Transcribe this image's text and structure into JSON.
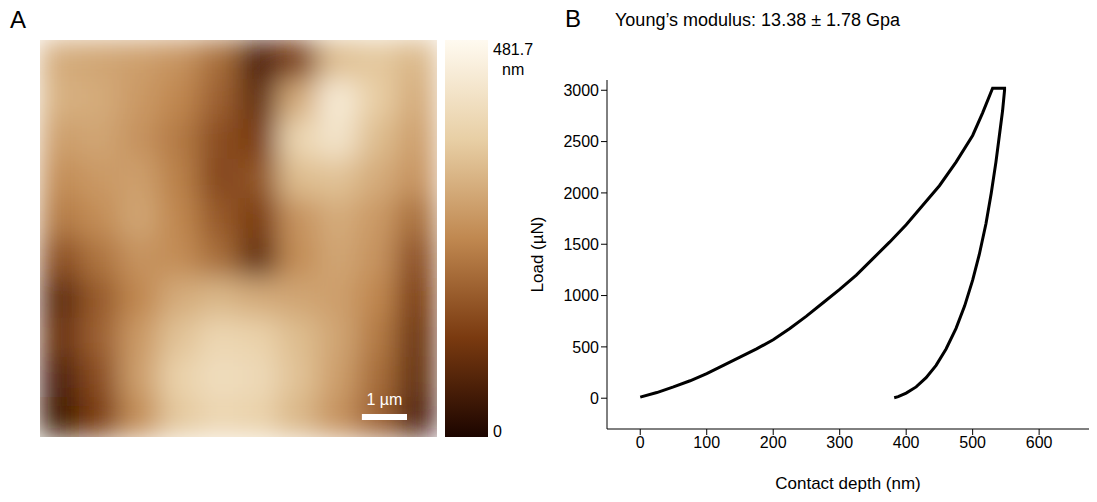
{
  "chart_data": [
    {
      "type": "heatmap",
      "panel_label": "A",
      "cells": [
        [
          300,
          290,
          280,
          260,
          200,
          60,
          120,
          330,
          350,
          320
        ],
        [
          310,
          300,
          270,
          240,
          180,
          90,
          300,
          440,
          360,
          300
        ],
        [
          280,
          290,
          260,
          220,
          150,
          120,
          380,
          420,
          330,
          280
        ],
        [
          250,
          270,
          280,
          230,
          140,
          160,
          330,
          340,
          300,
          260
        ],
        [
          220,
          250,
          290,
          240,
          170,
          120,
          260,
          300,
          270,
          200
        ],
        [
          150,
          210,
          260,
          250,
          200,
          90,
          250,
          290,
          260,
          150
        ],
        [
          80,
          170,
          240,
          300,
          320,
          300,
          290,
          280,
          240,
          120
        ],
        [
          100,
          180,
          270,
          340,
          380,
          370,
          330,
          290,
          220,
          100
        ],
        [
          60,
          150,
          280,
          370,
          400,
          390,
          340,
          280,
          200,
          90
        ],
        [
          40,
          120,
          250,
          350,
          380,
          370,
          320,
          260,
          180,
          60
        ]
      ],
      "colors": [
        "#1c0500",
        "#7a3a10",
        "#c08850",
        "#e8cfa5",
        "#fffaf0"
      ],
      "colorbar": {
        "range": [
          0,
          481.7
        ],
        "ticks": [
          0,
          481.7
        ],
        "unit": "nm"
      },
      "scale_bar": {
        "label": "1 µm",
        "length": 1,
        "image_width": 8.8
      }
    },
    {
      "type": "line",
      "panel_label": "B",
      "annotation": "Young’s modulus: 13.38 ± 1.78 Gpa",
      "x_label": "Contact depth (nm)",
      "y_label": "Load (µN)",
      "x": [
        0,
        25,
        50,
        75,
        100,
        125,
        150,
        175,
        200,
        225,
        250,
        275,
        300,
        325,
        350,
        375,
        400,
        425,
        450,
        475,
        500,
        515,
        530,
        548,
        548,
        545,
        540,
        535,
        528,
        520,
        510,
        500,
        488,
        475,
        460,
        445,
        430,
        415,
        400,
        388,
        382
      ],
      "values": [
        10,
        55,
        110,
        170,
        240,
        320,
        400,
        480,
        570,
        680,
        800,
        930,
        1060,
        1200,
        1360,
        1520,
        1690,
        1880,
        2070,
        2300,
        2560,
        2780,
        3020,
        3020,
        3000,
        2800,
        2550,
        2300,
        2000,
        1700,
        1400,
        1150,
        900,
        680,
        480,
        320,
        200,
        110,
        50,
        15,
        5
      ],
      "color": "#000000",
      "xlim": [
        -50,
        675
      ],
      "xticks": [
        0,
        100,
        200,
        300,
        400,
        500,
        600
      ],
      "ylim": [
        -300,
        3100
      ],
      "yticks": [
        0,
        500,
        1000,
        1500,
        2000,
        2500,
        3000
      ],
      "grid": false
    }
  ]
}
